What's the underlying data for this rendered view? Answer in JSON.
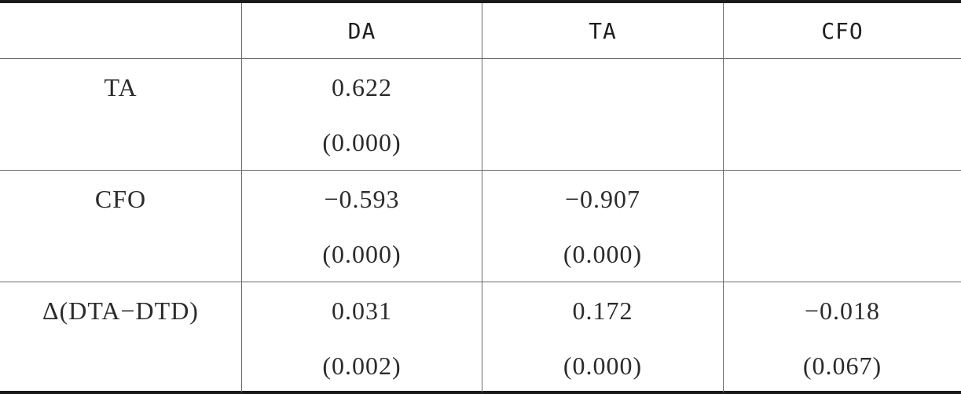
{
  "table": {
    "columns": [
      "",
      "DA",
      "TA",
      "CFO"
    ],
    "rows": [
      {
        "label": "TA",
        "cells": [
          {
            "coef": "0.622",
            "pval": "(0.000)"
          },
          {
            "coef": "",
            "pval": ""
          },
          {
            "coef": "",
            "pval": ""
          }
        ]
      },
      {
        "label": "CFO",
        "cells": [
          {
            "coef": "−0.593",
            "pval": "(0.000)"
          },
          {
            "coef": "−0.907",
            "pval": "(0.000)"
          },
          {
            "coef": "",
            "pval": ""
          }
        ]
      },
      {
        "label": "Δ(DTA−DTD)",
        "cells": [
          {
            "coef": "0.031",
            "pval": "(0.002)"
          },
          {
            "coef": "0.172",
            "pval": "(0.000)"
          },
          {
            "coef": "−0.018",
            "pval": "(0.067)"
          }
        ]
      }
    ]
  }
}
